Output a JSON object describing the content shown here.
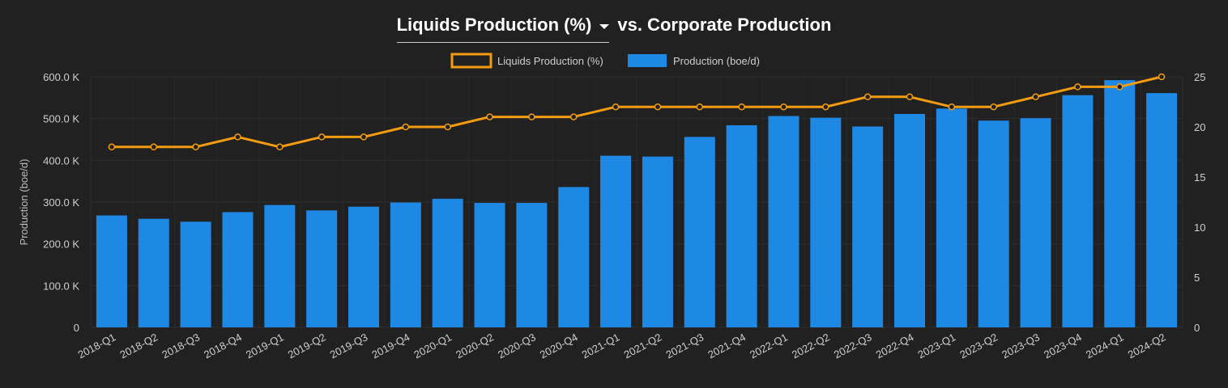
{
  "header": {
    "metric_selector": "Liquids Production (%)",
    "title_rest": "vs. Corporate Production"
  },
  "legend": {
    "line_label": "Liquids Production (%)",
    "bar_label": "Production (boe/d)"
  },
  "colors": {
    "bar": "#1e88e5",
    "line": "#f39c12",
    "background": "#212121"
  },
  "chart_data": {
    "type": "bar",
    "title": "Liquids Production (%) vs. Corporate Production",
    "categories": [
      "2018-Q1",
      "2018-Q2",
      "2018-Q3",
      "2018-Q4",
      "2019-Q1",
      "2019-Q2",
      "2019-Q3",
      "2019-Q4",
      "2020-Q1",
      "2020-Q2",
      "2020-Q3",
      "2020-Q4",
      "2021-Q1",
      "2021-Q2",
      "2021-Q3",
      "2021-Q4",
      "2022-Q1",
      "2022-Q2",
      "2022-Q3",
      "2022-Q4",
      "2023-Q1",
      "2023-Q2",
      "2023-Q3",
      "2023-Q4",
      "2024-Q1",
      "2024-Q2"
    ],
    "series": [
      {
        "name": "Production (boe/d)",
        "type": "bar",
        "axis": "left",
        "values": [
          268000,
          260000,
          253000,
          276000,
          293000,
          280000,
          289000,
          299000,
          308000,
          298000,
          298000,
          336000,
          411000,
          409000,
          456000,
          484000,
          506000,
          502000,
          481000,
          511000,
          524000,
          495000,
          501000,
          556000,
          592000,
          561000
        ]
      },
      {
        "name": "Liquids Production (%)",
        "type": "line",
        "axis": "right",
        "values": [
          18,
          18,
          18,
          19,
          18,
          19,
          19,
          20,
          20,
          21,
          21,
          21,
          22,
          22,
          22,
          22,
          22,
          22,
          23,
          23,
          22,
          22,
          23,
          24,
          24,
          25
        ]
      }
    ],
    "ylabel": "Production (boe/d)",
    "ylim": [
      0,
      600000
    ],
    "y_ticks": [
      "0",
      "100.0 K",
      "200.0 K",
      "300.0 K",
      "400.0 K",
      "500.0 K",
      "600.0 K"
    ],
    "y2lim": [
      0,
      25
    ],
    "y2_ticks": [
      "0",
      "5",
      "10",
      "15",
      "20",
      "25"
    ],
    "grid": true,
    "legend_position": "top-center"
  }
}
